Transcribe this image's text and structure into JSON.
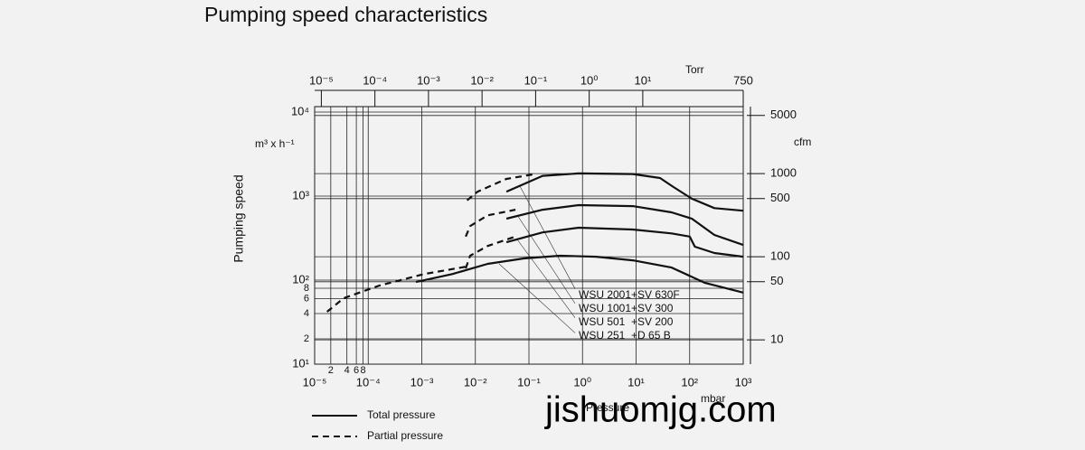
{
  "chart_data": {
    "type": "line",
    "title": "Pumping speed characteristics",
    "ylabel": "Pumping speed",
    "yunit": "m³ x h⁻¹",
    "y2unit": "cfm",
    "xunit": "mbar",
    "x2unit": "Torr",
    "xlabel": "Pressure",
    "watermark": "jishuomjg.com",
    "xscale": "log",
    "yscale": "log",
    "y2scale": "log",
    "grid": true,
    "color": "#111111",
    "xlim": [
      1e-05,
      1000
    ],
    "xticks": [
      {
        "value": 1e-05,
        "label": "10⁻⁵"
      },
      {
        "value": 0.0001,
        "label": "10⁻⁴"
      },
      {
        "value": 0.001,
        "label": "10⁻³"
      },
      {
        "value": 0.01,
        "label": "10⁻²"
      },
      {
        "value": 0.1,
        "label": "10⁻¹"
      },
      {
        "value": 1,
        "label": "10⁰"
      },
      {
        "value": 10,
        "label": "10¹"
      },
      {
        "value": 100,
        "label": "10²"
      },
      {
        "value": 1000,
        "label": "10³"
      }
    ],
    "xminorticks": [
      {
        "value": 2e-05,
        "label": "2"
      },
      {
        "value": 4e-05,
        "label": "4"
      },
      {
        "value": 6e-05,
        "label": "6"
      },
      {
        "value": 8e-05,
        "label": "8"
      }
    ],
    "x2lim": [
      7.5e-06,
      750
    ],
    "x2ticks": [
      {
        "value": 1e-05,
        "label": "10⁻⁵"
      },
      {
        "value": 0.0001,
        "label": "10⁻⁴"
      },
      {
        "value": 0.001,
        "label": "10⁻³"
      },
      {
        "value": 0.01,
        "label": "10⁻²"
      },
      {
        "value": 0.1,
        "label": "10⁻¹"
      },
      {
        "value": 1,
        "label": "10⁰"
      },
      {
        "value": 10,
        "label": "10¹"
      },
      750
    ],
    "ylim": [
      10,
      10000
    ],
    "yticks": [
      {
        "value": 10,
        "label": "10¹"
      },
      {
        "value": 100,
        "label": "10²"
      },
      {
        "value": 1000,
        "label": "10³"
      },
      {
        "value": 10000,
        "label": "10⁴"
      }
    ],
    "yminorticks": [
      {
        "value": 20,
        "label": "2"
      },
      {
        "value": 40,
        "label": "4"
      },
      {
        "value": 60,
        "label": "6"
      },
      {
        "value": 80,
        "label": "8"
      }
    ],
    "y2lim": [
      5.1,
      5500
    ],
    "y2ticks": [
      10,
      50,
      100,
      500,
      1000,
      5000
    ],
    "line_styles": [
      {
        "label": "Total pressure",
        "dash": "none"
      },
      {
        "label": "Partial pressure",
        "dash": "7 5"
      }
    ],
    "series": [
      {
        "name": "WSU 2001+SV 630F",
        "x": [
          0.038,
          0.18,
          0.85,
          8.7,
          28,
          50,
          110,
          290,
          1000
        ],
        "values": [
          1130,
          1740,
          1860,
          1830,
          1640,
          1280,
          930,
          720,
          670
        ],
        "partial_x": [
          0.007,
          0.011,
          0.038,
          0.12
        ],
        "partial_values": [
          890,
          1130,
          1600,
          1810
        ]
      },
      {
        "name": "WSU 1001+SV 300",
        "x": [
          0.038,
          0.18,
          0.85,
          8.7,
          46,
          110,
          290,
          1000
        ],
        "values": [
          538,
          688,
          780,
          760,
          640,
          538,
          345,
          262
        ],
        "partial_x": [
          0.0066,
          0.008,
          0.017,
          0.056
        ],
        "partial_values": [
          330,
          440,
          590,
          688
        ]
      },
      {
        "name": "WSU 501  +SV 200",
        "x": [
          0.038,
          0.18,
          0.85,
          8.7,
          46,
          100,
          125,
          290,
          1000
        ],
        "values": [
          282,
          370,
          420,
          400,
          360,
          330,
          250,
          210,
          190
        ],
        "partial_x": [
          0.0066,
          0.008,
          0.017,
          0.056
        ],
        "partial_values": [
          138,
          195,
          255,
          330
        ]
      },
      {
        "name": "WSU 251  +D 65 B",
        "x": [
          0.00078,
          0.0037,
          0.017,
          0.08,
          0.38,
          1.8,
          8.7,
          46,
          190,
          1000
        ],
        "values": [
          95,
          118,
          156,
          181,
          195,
          190,
          172,
          141,
          93,
          71
        ],
        "partial_x": [
          1.7e-05,
          3.5e-05,
          0.00016,
          0.0011,
          0.0069
        ],
        "partial_values": [
          42,
          61,
          86,
          118,
          145
        ]
      }
    ]
  }
}
